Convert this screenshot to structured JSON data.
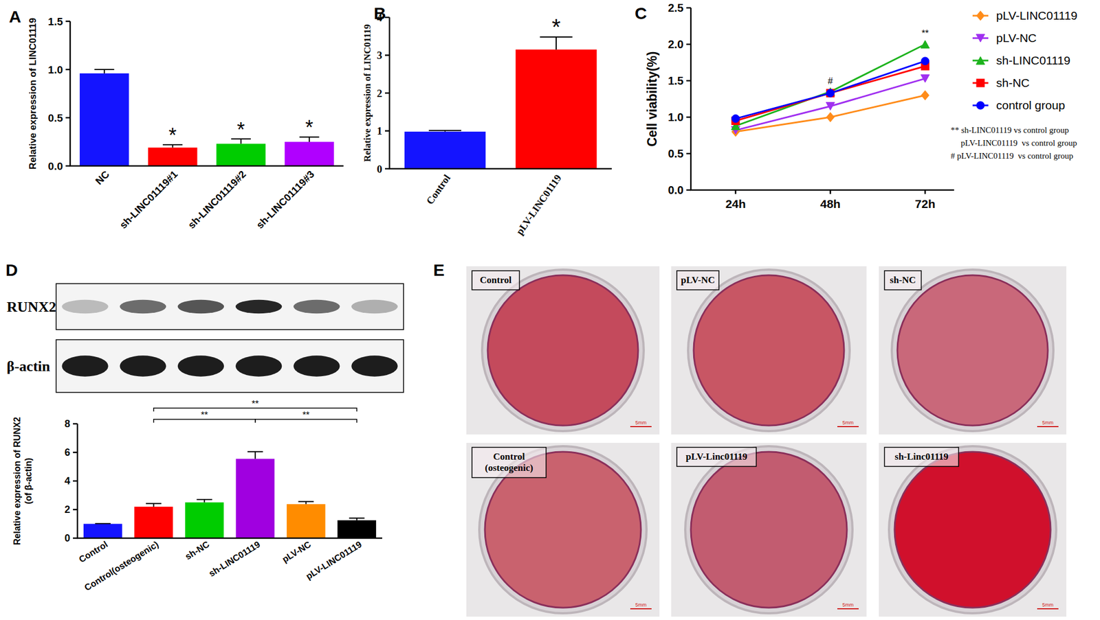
{
  "chart_data": [
    {
      "type": "bar",
      "panel_label": "A",
      "ylabel": "Relative expression of LINC01119",
      "categories": [
        "NC",
        "sh-LINC01119#1",
        "sh-LINC01119#2",
        "sh-LINC01119#3"
      ],
      "values": [
        0.96,
        0.19,
        0.23,
        0.25
      ],
      "errors": [
        0.04,
        0.03,
        0.05,
        0.05
      ],
      "colors": [
        "#1414ff",
        "#ff0000",
        "#00cc00",
        "#b000ff"
      ],
      "significance": [
        null,
        "*",
        "*",
        "*"
      ],
      "ylim": [
        0,
        1.5
      ],
      "yticks": [
        {
          "value": 0,
          "label": "0.0"
        },
        {
          "value": 0.5,
          "label": "0.5"
        },
        {
          "value": 1,
          "label": "1.0"
        },
        {
          "value": 1.5,
          "label": "1.5"
        }
      ],
      "grid": false
    },
    {
      "type": "bar",
      "panel_label": "B",
      "ylabel": "Relative expression of LINC01119",
      "categories": [
        "Control",
        "pLV-LINC01119"
      ],
      "values": [
        0.98,
        3.15
      ],
      "errors": [
        0.03,
        0.33
      ],
      "colors": [
        "#1414ff",
        "#ff0000"
      ],
      "significance": [
        null,
        "*"
      ],
      "ylim": [
        0,
        4
      ],
      "yticks": [
        0,
        1,
        2,
        3,
        4
      ],
      "grid": false
    },
    {
      "type": "line",
      "panel_label": "C",
      "ylabel": "Cell viability(%)",
      "x": [
        "24h",
        "48h",
        "72h"
      ],
      "series": [
        {
          "name": "pLV-LINC01119",
          "color": "#ff8c1a",
          "marker": "diamond",
          "values": [
            0.8,
            1.0,
            1.3
          ]
        },
        {
          "name": "pLV-NC",
          "color": "#a030f0",
          "marker": "triangle-down",
          "values": [
            0.82,
            1.15,
            1.53
          ]
        },
        {
          "name": "sh-LINC01119",
          "color": "#1db31d",
          "marker": "triangle-up",
          "values": [
            0.88,
            1.35,
            2.0
          ]
        },
        {
          "name": "sh-NC",
          "color": "#ff0000",
          "marker": "square",
          "values": [
            0.95,
            1.33,
            1.7
          ]
        },
        {
          "name": "control group",
          "color": "#0000ff",
          "marker": "circle",
          "values": [
            0.98,
            1.33,
            1.77
          ]
        }
      ],
      "annotations": [
        {
          "x": "48h",
          "text": "#"
        },
        {
          "x": "72h",
          "text": "**"
        }
      ],
      "notes": [
        "** sh-LINC01119 vs control group",
        "pLV-LINC01119  vs control group",
        "# pLV-LINC01119  vs control group"
      ],
      "ylim": [
        0,
        2.5
      ],
      "yticks": [
        {
          "value": 0,
          "label": "0.0"
        },
        {
          "value": 0.5,
          "label": "0.5"
        },
        {
          "value": 1,
          "label": "1.0"
        },
        {
          "value": 1.5,
          "label": "1.5"
        },
        {
          "value": 2,
          "label": "2.0"
        },
        {
          "value": 2.5,
          "label": "2.5"
        }
      ],
      "legend": "right",
      "grid": false
    },
    {
      "type": "bar",
      "panel_label": "D",
      "ylabel": [
        "Relative expression of RUNX2",
        "(of β-actin)"
      ],
      "categories": [
        "Control",
        "Control(osteogenic)",
        "sh-NC",
        "sh-LINC01119",
        "pLV-NC",
        "pLV-LINC01119"
      ],
      "values": [
        1.0,
        2.2,
        2.5,
        5.55,
        2.38,
        1.25
      ],
      "errors": [
        0.02,
        0.22,
        0.2,
        0.5,
        0.18,
        0.15
      ],
      "colors": [
        "#1414ff",
        "#ff0000",
        "#00cc00",
        "#a000e0",
        "#ff8c00",
        "#000000"
      ],
      "brackets": [
        {
          "from": "Control(osteogenic)",
          "to": "sh-LINC01119",
          "label": "**"
        },
        {
          "from": "sh-LINC01119",
          "to": "pLV-LINC01119",
          "label": "**"
        },
        {
          "from": "Control(osteogenic)",
          "to": "pLV-LINC01119",
          "label": "**"
        }
      ],
      "blot": [
        {
          "label": "RUNX2",
          "intensity": [
            0.25,
            0.6,
            0.7,
            0.9,
            0.6,
            0.3
          ]
        },
        {
          "label": "β-actin",
          "intensity": [
            0.95,
            0.95,
            0.95,
            0.95,
            0.95,
            0.95
          ]
        }
      ],
      "ylim": [
        0,
        8
      ],
      "yticks": [
        0,
        2,
        4,
        6,
        8
      ],
      "grid": false
    }
  ],
  "staining": {
    "panel_label": "E",
    "scale_bar": "5mm",
    "dishes": [
      {
        "label": "Control",
        "color": "#c44a5c"
      },
      {
        "label": "pLV-NC",
        "color": "#c85664"
      },
      {
        "label": "sh-NC",
        "color": "#c9687a"
      },
      {
        "label": [
          "Control",
          "(osteogenic)"
        ],
        "color": "#c9626e"
      },
      {
        "label": "pLV-Linc01119",
        "color": "#c25c70"
      },
      {
        "label": "sh-Linc01119",
        "color": "#d0102c"
      }
    ]
  }
}
